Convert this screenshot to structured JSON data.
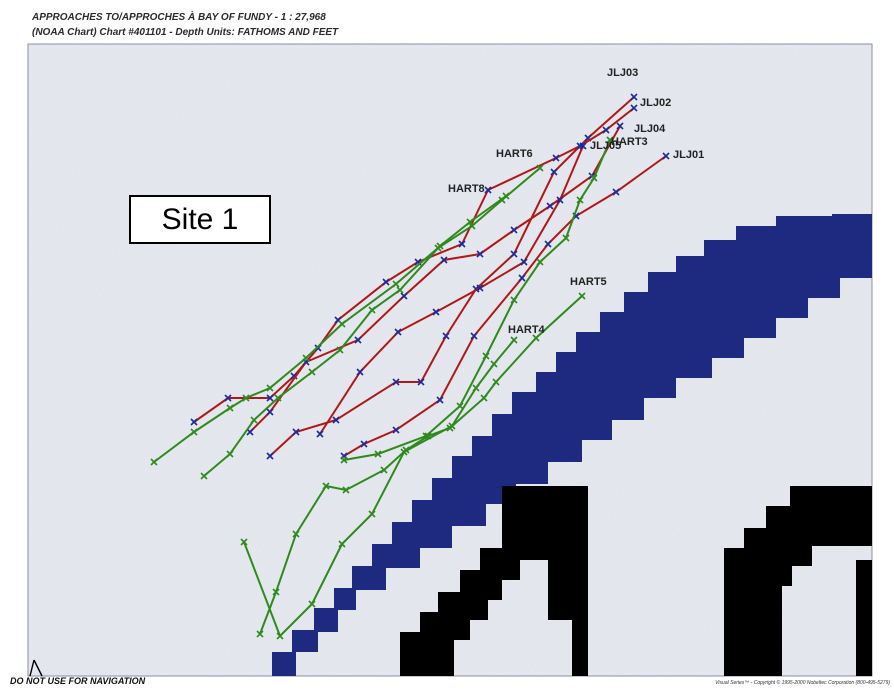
{
  "header": {
    "title": "APPROACHES TO/APPROCHES À BAY OF FUNDY -  1 : 27,968",
    "subtitle": "(NOAA Chart) Chart #401101 - Depth Units: FATHOMS AND FEET"
  },
  "site_label": "Site 1",
  "footer": {
    "disclaimer": "DO NOT USE FOR NAVIGATION",
    "copyright": "Visual Series™ - Copyright © 1995-2000 Nobeltec Corporation (800-495-5279)"
  },
  "colors": {
    "map_background": "#e4e6ee",
    "deep_water": "#1e2a80",
    "land": "#000000",
    "red_track": "#b01818",
    "green_track": "#2f8a1e",
    "waypoint_marker": "#1a2a9a"
  },
  "tracks": [
    {
      "name": "JLJ03",
      "color": "red",
      "label": "JLJ03"
    },
    {
      "name": "JLJ02",
      "color": "red",
      "label": "JLJ02"
    },
    {
      "name": "JLJ04",
      "color": "red",
      "label": "JLJ04"
    },
    {
      "name": "JLJ01",
      "color": "red",
      "label": "JLJ01"
    },
    {
      "name": "JLJ05",
      "color": "red",
      "label": "JLJ05"
    },
    {
      "name": "HART3",
      "color": "green",
      "label": "HART3"
    },
    {
      "name": "HART6",
      "color": "green",
      "label": "HART6"
    },
    {
      "name": "HART8",
      "color": "green",
      "label": "HART8"
    },
    {
      "name": "HART5",
      "color": "green",
      "label": "HART5"
    },
    {
      "name": "HART4",
      "color": "green",
      "label": "HART4"
    }
  ]
}
